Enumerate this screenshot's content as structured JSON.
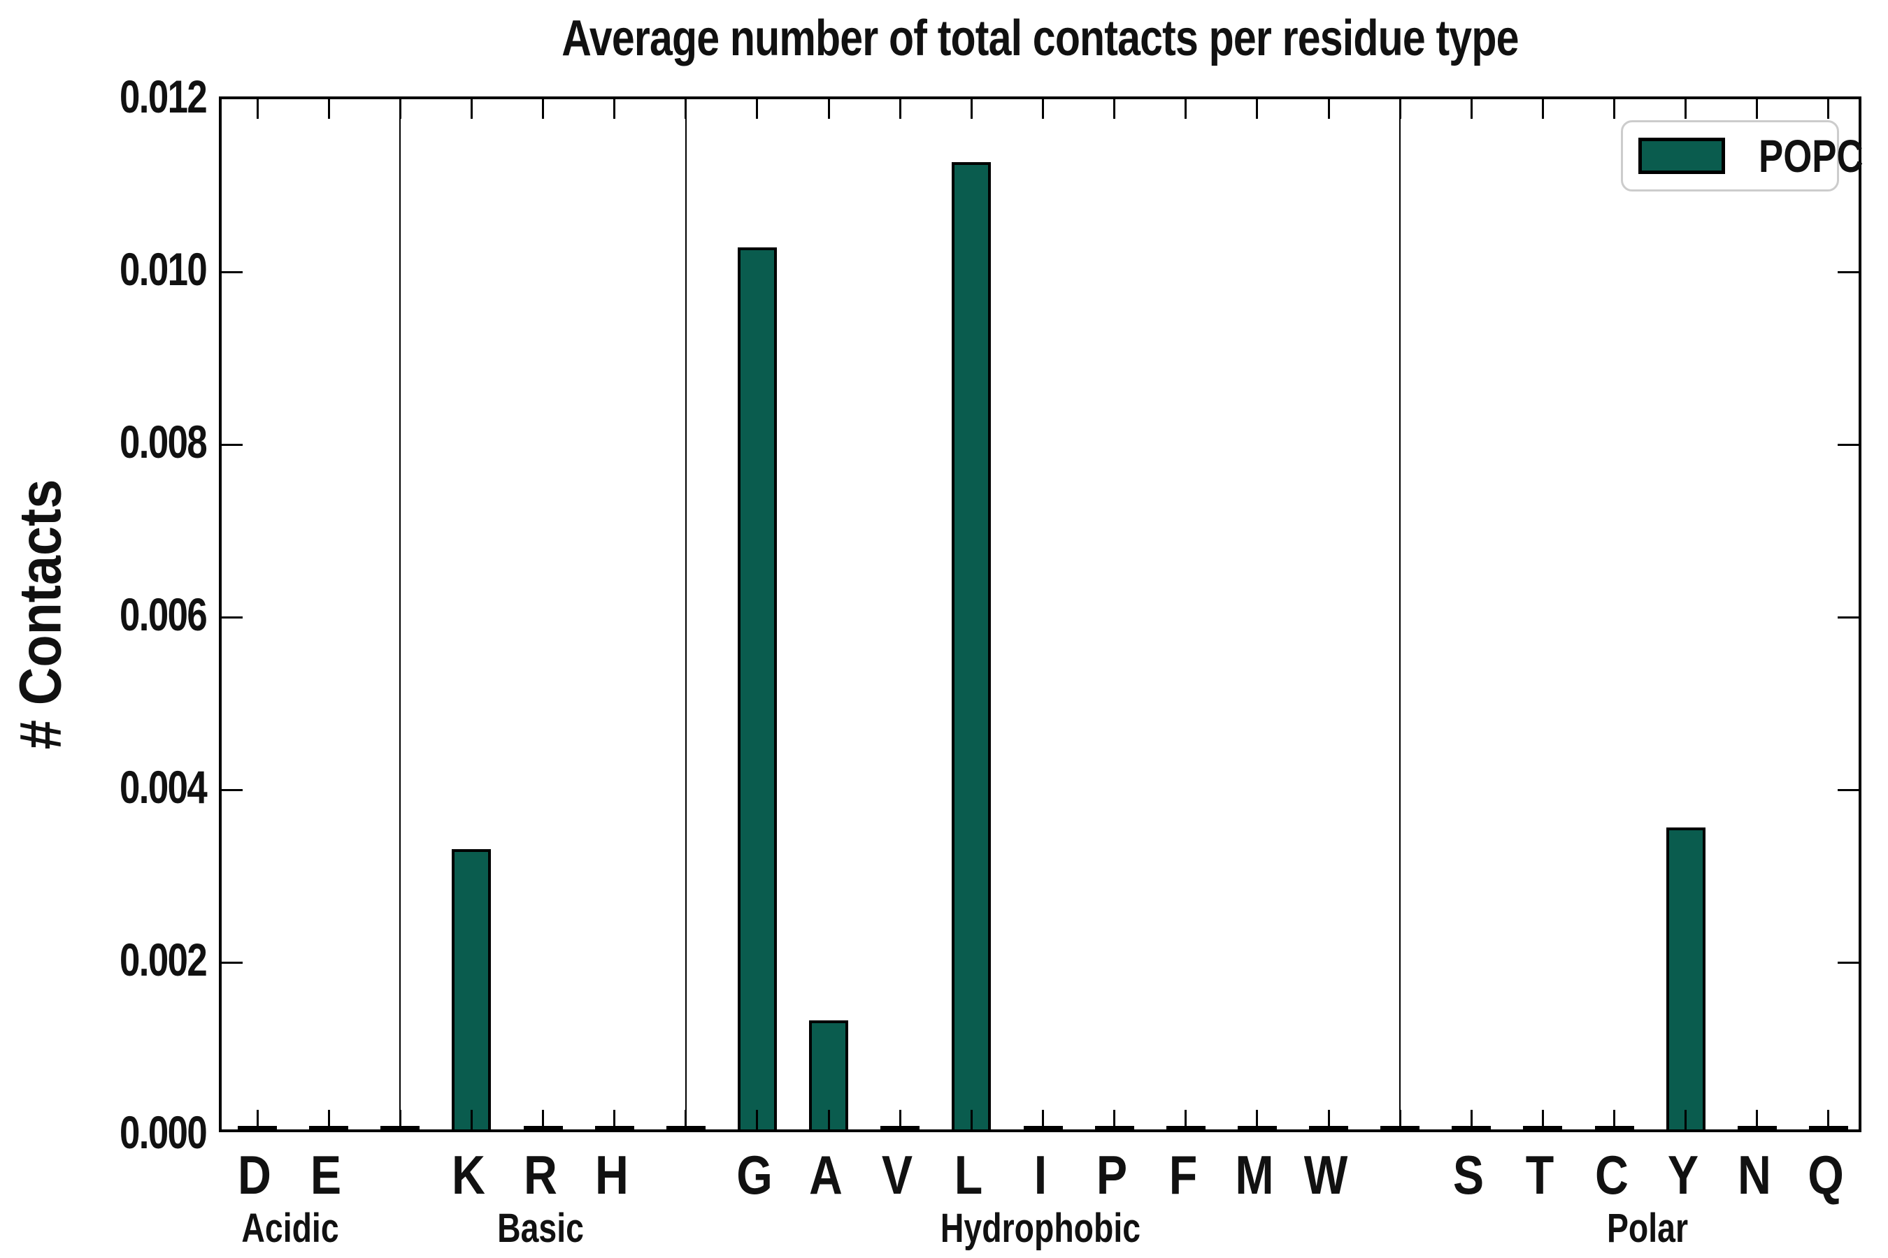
{
  "title": "Average number of total contacts per residue type",
  "y_axis_label": "# Contacts",
  "legend": {
    "label": "POPC"
  },
  "colors": {
    "bar_fill": "#0a5c4e",
    "bar_edge": "#000000",
    "axis": "#000000",
    "legend_border": "#cccccc",
    "text": "#111111",
    "background": "#ffffff"
  },
  "chart_data": {
    "type": "bar",
    "title": "Average number of total contacts per residue type",
    "xlabel": "",
    "ylabel": "# Contacts",
    "ylim": [
      0,
      0.012
    ],
    "ytick_values": [
      0.0,
      0.002,
      0.004,
      0.006,
      0.008,
      0.01,
      0.012
    ],
    "ytick_labels": [
      "0.000",
      "0.002",
      "0.004",
      "0.006",
      "0.008",
      "0.010",
      "0.012"
    ],
    "grid": false,
    "legend_entries": [
      "POPC"
    ],
    "legend_position": "upper right",
    "groups": [
      {
        "label": "Acidic",
        "categories": [
          "D",
          "E"
        ],
        "values": [
          3e-05,
          3e-05
        ]
      },
      {
        "label": "Basic",
        "categories": [
          "K",
          "R",
          "H"
        ],
        "values": [
          0.00325,
          3e-05,
          3e-05
        ]
      },
      {
        "label": "Hydrophobic",
        "categories": [
          "G",
          "A",
          "V",
          "L",
          "I",
          "P",
          "F",
          "M",
          "W"
        ],
        "values": [
          0.01022,
          0.00126,
          3e-05,
          0.01121,
          3e-05,
          3e-05,
          3e-05,
          3e-05,
          3e-05
        ]
      },
      {
        "label": "Polar",
        "categories": [
          "S",
          "T",
          "C",
          "Y",
          "N",
          "Q"
        ],
        "values": [
          3e-05,
          3e-05,
          3e-05,
          0.0035,
          3e-05,
          3e-05
        ]
      }
    ],
    "series": [
      {
        "name": "POPC",
        "categories": [
          "D",
          "E",
          "K",
          "R",
          "H",
          "G",
          "A",
          "V",
          "L",
          "I",
          "P",
          "F",
          "M",
          "W",
          "S",
          "T",
          "C",
          "Y",
          "N",
          "Q"
        ],
        "values": [
          3e-05,
          3e-05,
          0.00325,
          3e-05,
          3e-05,
          0.01022,
          0.00126,
          3e-05,
          0.01121,
          3e-05,
          3e-05,
          3e-05,
          3e-05,
          3e-05,
          3e-05,
          3e-05,
          3e-05,
          0.0035,
          3e-05,
          3e-05
        ]
      }
    ]
  }
}
